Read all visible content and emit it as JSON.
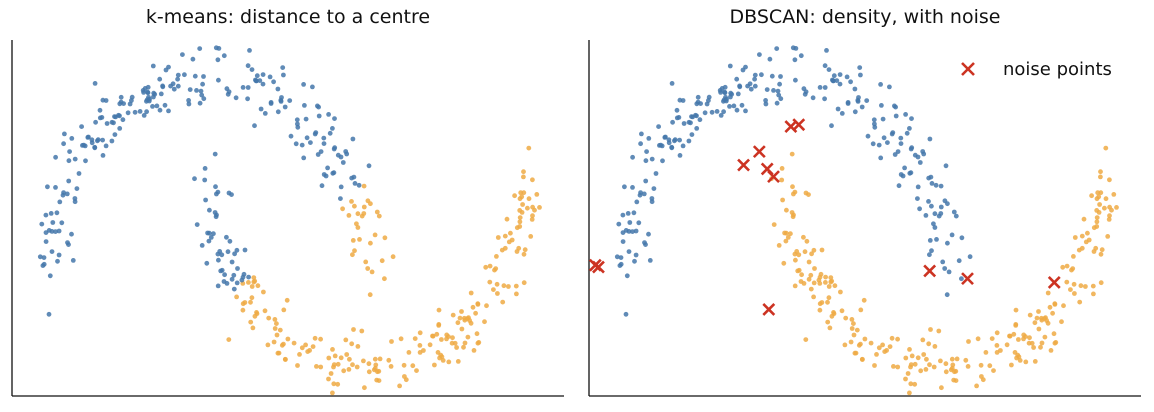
{
  "chart_data": [
    {
      "type": "scatter",
      "title": "k-means: distance to a centre",
      "xlabel": "",
      "ylabel": "",
      "xlim": [
        -1.25,
        2.25
      ],
      "ylim": [
        -0.65,
        1.2
      ],
      "axes_visible": [
        "left",
        "bottom"
      ],
      "ticks": false,
      "grid": false,
      "series": [
        {
          "color": "#4477aa",
          "description_points": "two-moons data, cluster 1"
        },
        {
          "color": "#eeaa44",
          "description_points": "two-moons data, cluster 2"
        }
      ]
    },
    {
      "type": "scatter",
      "title": "DBSCAN: density, with noise",
      "xlabel": "",
      "ylabel": "",
      "xlim": [
        -1.25,
        2.25
      ],
      "ylim": [
        -0.65,
        1.2
      ],
      "axes_visible": [
        "left",
        "bottom"
      ],
      "ticks": false,
      "grid": false,
      "legend": {
        "position": "top-right",
        "entries": [
          "noise points"
        ]
      },
      "series": [
        {
          "color": "#4477aa"
        },
        {
          "color": "#eeaa44"
        },
        {
          "name": "noise points",
          "color": "#cc3322",
          "marker": "x",
          "x": [
            -1.21,
            -1.19,
            -0.27,
            -0.17,
            -0.12,
            -0.08,
            0.03,
            0.08,
            -0.11,
            0.91,
            1.15,
            1.7
          ],
          "y": [
            0.03,
            0.02,
            0.55,
            0.62,
            0.53,
            0.49,
            0.75,
            0.76,
            -0.2,
            0.0,
            -0.04,
            -0.06
          ]
        }
      ]
    }
  ],
  "colors": {
    "blue": "#4477aa",
    "orange": "#eeaa44",
    "noise": "#cc3322",
    "axis": "#111111"
  }
}
